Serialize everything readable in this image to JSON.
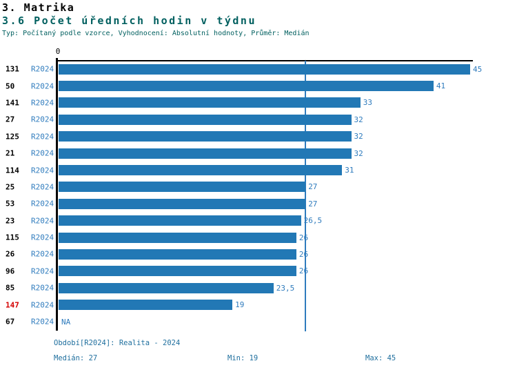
{
  "header": {
    "title": "3. Matrika",
    "subtitle": "3.6 Počet úředních hodin v týdnu",
    "meta": "Typ: Počítaný podle vzorce, Vyhodnocení: Absolutní hodnoty, Průměr: Medián"
  },
  "chart_data": {
    "type": "bar",
    "orientation": "horizontal",
    "title": "3.6 Počet úředních hodin v týdnu",
    "x_axis": {
      "zero_label": "0",
      "min": 0,
      "max": 45,
      "gridlines": false
    },
    "median_line_value": 27,
    "series_name": "R2024",
    "rows": [
      {
        "id": "131",
        "period": "R2024",
        "value": 45,
        "value_label": "45",
        "id_highlighted": false
      },
      {
        "id": "50",
        "period": "R2024",
        "value": 41,
        "value_label": "41",
        "id_highlighted": false
      },
      {
        "id": "141",
        "period": "R2024",
        "value": 33,
        "value_label": "33",
        "id_highlighted": false
      },
      {
        "id": "27",
        "period": "R2024",
        "value": 32,
        "value_label": "32",
        "id_highlighted": false
      },
      {
        "id": "125",
        "period": "R2024",
        "value": 32,
        "value_label": "32",
        "id_highlighted": false
      },
      {
        "id": "21",
        "period": "R2024",
        "value": 32,
        "value_label": "32",
        "id_highlighted": false
      },
      {
        "id": "114",
        "period": "R2024",
        "value": 31,
        "value_label": "31",
        "id_highlighted": false
      },
      {
        "id": "25",
        "period": "R2024",
        "value": 27,
        "value_label": "27",
        "id_highlighted": false
      },
      {
        "id": "53",
        "period": "R2024",
        "value": 27,
        "value_label": "27",
        "id_highlighted": false
      },
      {
        "id": "23",
        "period": "R2024",
        "value": 26.5,
        "value_label": "26,5",
        "id_highlighted": false
      },
      {
        "id": "115",
        "period": "R2024",
        "value": 26,
        "value_label": "26",
        "id_highlighted": false
      },
      {
        "id": "26",
        "period": "R2024",
        "value": 26,
        "value_label": "26",
        "id_highlighted": false
      },
      {
        "id": "96",
        "period": "R2024",
        "value": 26,
        "value_label": "26",
        "id_highlighted": false
      },
      {
        "id": "85",
        "period": "R2024",
        "value": 23.5,
        "value_label": "23,5",
        "id_highlighted": false
      },
      {
        "id": "147",
        "period": "R2024",
        "value": 19,
        "value_label": "19",
        "id_highlighted": true
      },
      {
        "id": "67",
        "period": "R2024",
        "value": null,
        "value_label": "NA",
        "id_highlighted": false
      }
    ]
  },
  "footer": {
    "period_info": "Období[R2024]: Realita - 2024",
    "median": "Medián: 27",
    "min": "Min: 19",
    "max": "Max: 45"
  },
  "colors": {
    "bar": "#2278b5",
    "label_blue": "#2e7bbd",
    "footer_blue": "#1f6f9e",
    "teal_heading": "#005f5f",
    "highlight_red": "#d40000",
    "axis": "#000000"
  }
}
